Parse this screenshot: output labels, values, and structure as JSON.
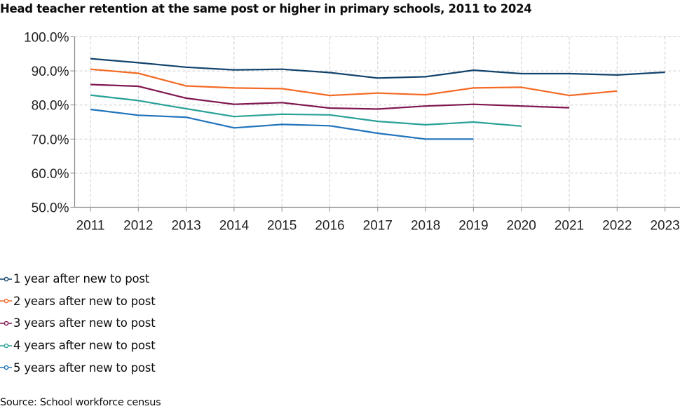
{
  "chart_data": {
    "type": "line",
    "title": "Head teacher retention at the same post or higher in primary schools, 2011 to 2024",
    "xlabel": "",
    "ylabel": "",
    "x": [
      "2011",
      "2012",
      "2013",
      "2014",
      "2015",
      "2016",
      "2017",
      "2018",
      "2019",
      "2020",
      "2021",
      "2022",
      "2023"
    ],
    "ylim": [
      50,
      100
    ],
    "yticks": [
      50,
      60,
      70,
      80,
      90,
      100
    ],
    "ytick_labels": [
      "50.0%",
      "60.0%",
      "70.0%",
      "80.0%",
      "90.0%",
      "100.0%"
    ],
    "grid": true,
    "legend_position": "bottom-left",
    "series": [
      {
        "name": "1 year after new to post",
        "color": "#12436D",
        "values": [
          93.6,
          92.4,
          91.1,
          90.3,
          90.5,
          89.5,
          87.9,
          88.3,
          90.2,
          89.2,
          89.2,
          88.8,
          89.6
        ]
      },
      {
        "name": "2 years after new to post",
        "color": "#F46A25",
        "values": [
          90.5,
          89.3,
          85.6,
          85.0,
          84.8,
          82.8,
          83.5,
          83.0,
          85.0,
          85.2,
          82.8,
          84.1,
          null
        ]
      },
      {
        "name": "3 years after new to post",
        "color": "#801650",
        "values": [
          86.0,
          85.5,
          82.0,
          80.2,
          80.7,
          79.1,
          78.8,
          79.7,
          80.2,
          79.7,
          79.2,
          null,
          null
        ]
      },
      {
        "name": "4 years after new to post",
        "color": "#28A197",
        "values": [
          82.9,
          81.3,
          78.9,
          76.6,
          77.3,
          77.1,
          75.2,
          74.2,
          75.0,
          73.8,
          null,
          null,
          null
        ]
      },
      {
        "name": "5 years after new to post",
        "color": "#2073BC",
        "values": [
          78.7,
          77.0,
          76.4,
          73.3,
          74.3,
          73.9,
          71.7,
          70.0,
          70.0,
          null,
          null,
          null,
          null
        ]
      }
    ]
  },
  "header": {
    "title": "Head teacher retention at the same post or higher in primary schools, 2011 to 2024"
  },
  "legend": {
    "items": [
      {
        "label": "1 year after new to post",
        "color": "#12436D"
      },
      {
        "label": "2 years after new to post",
        "color": "#F46A25"
      },
      {
        "label": "3 years after new to post",
        "color": "#801650"
      },
      {
        "label": "4 years after new to post",
        "color": "#28A197"
      },
      {
        "label": "5 years after new to post",
        "color": "#2073BC"
      }
    ]
  },
  "footer": {
    "source": "Source: School workforce census"
  },
  "colors": {
    "gridline": "#cccccc",
    "axis": "#888888",
    "text": "#0b0c0c"
  }
}
